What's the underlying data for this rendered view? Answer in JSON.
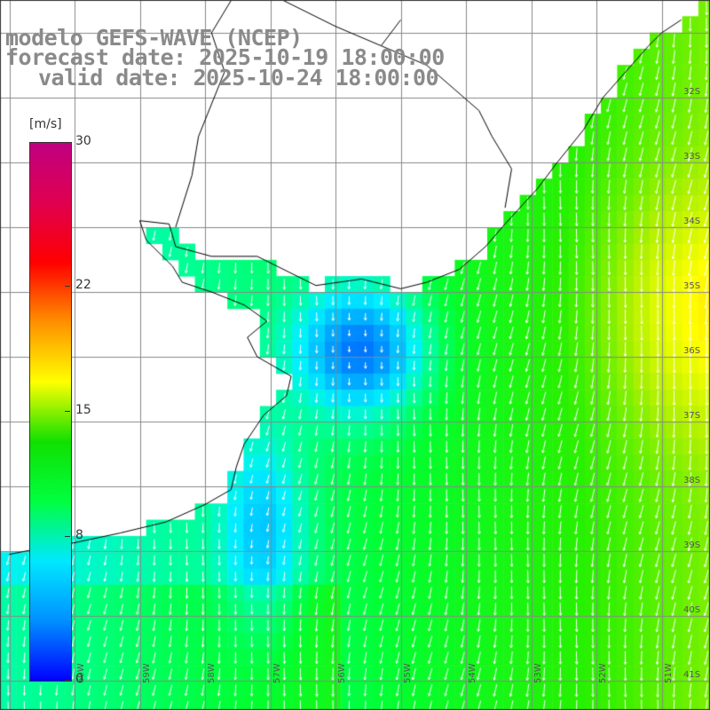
{
  "header": {
    "line1": "modelo GEFS-WAVE (NCEP)",
    "line2": "forecast date: 2025-10-19 18:00:00",
    "line3": "valid date: 2025-10-24 18:00:00"
  },
  "colorbar": {
    "unit": "[m/s]",
    "min": 0,
    "max": 30,
    "ticks": [
      {
        "value": 30,
        "label": "30"
      },
      {
        "value": 22,
        "label": "22"
      },
      {
        "value": 15,
        "label": "15"
      },
      {
        "value": 8,
        "label": "8"
      },
      {
        "value": 0,
        "label": "0"
      }
    ],
    "colors": [
      "#0000ff",
      "#0090ff",
      "#00e8ff",
      "#00ff40",
      "#10e000",
      "#ffff00",
      "#ff9000",
      "#ff0000",
      "#e00050",
      "#c00080"
    ]
  },
  "map": {
    "lon_range": [
      -61,
      -50
    ],
    "lat_range": [
      -41,
      -31
    ],
    "lat_labels": [
      "32S",
      "33S",
      "34S",
      "35S",
      "36S",
      "37S",
      "38S",
      "39S",
      "40S",
      "41S"
    ],
    "lon_labels": [
      "60W",
      "59W",
      "58W",
      "57W",
      "56W",
      "55W",
      "54W",
      "53W",
      "52W",
      "51W"
    ],
    "grid": true,
    "land_color": "#ffffff",
    "coast_color": "#000000",
    "vector_color": "#ffffff"
  }
}
